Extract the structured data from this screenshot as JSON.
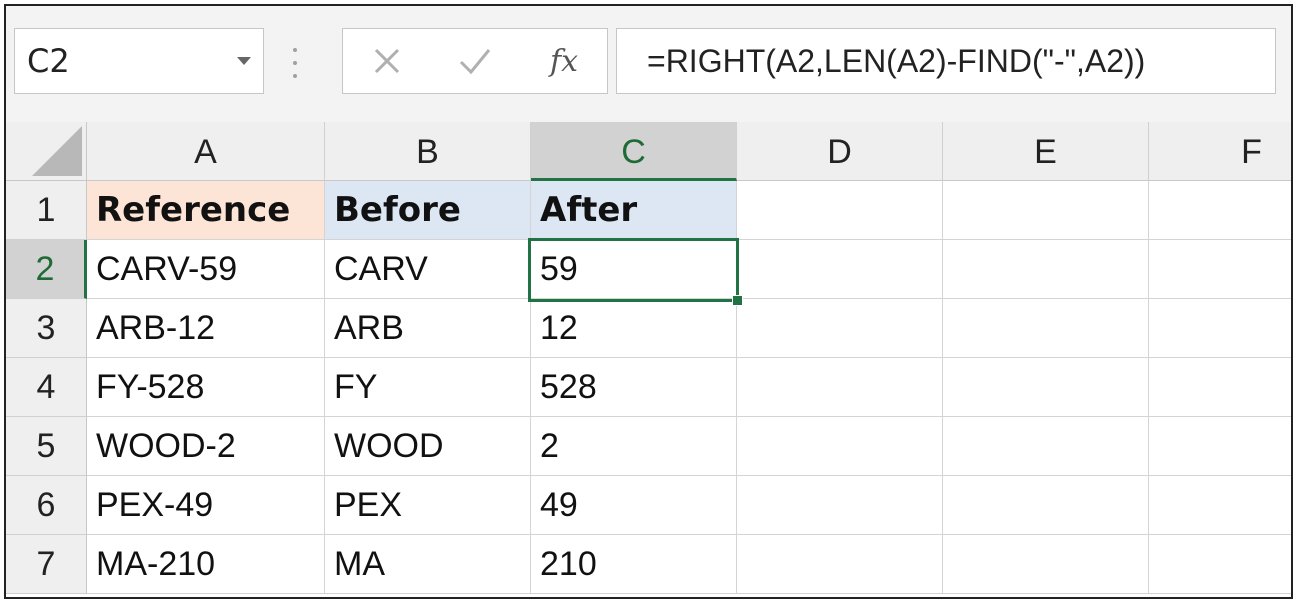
{
  "formula_bar": {
    "name_box": "C2",
    "fx_label": "fx",
    "formula": "=RIGHT(A2,LEN(A2)-FIND(\"-\",A2))"
  },
  "columns": [
    "A",
    "B",
    "C",
    "D",
    "E",
    "F"
  ],
  "rows": [
    "1",
    "2",
    "3",
    "4",
    "5",
    "6",
    "7"
  ],
  "cells": {
    "header": [
      "Reference",
      "Before",
      "After"
    ],
    "data": [
      [
        "CARV-59",
        "CARV",
        "59"
      ],
      [
        "ARB-12",
        "ARB",
        "12"
      ],
      [
        "FY-528",
        "FY",
        "528"
      ],
      [
        "WOOD-2",
        "WOOD",
        "2"
      ],
      [
        "PEX-49",
        "PEX",
        "49"
      ],
      [
        "MA-210",
        "MA",
        "210"
      ]
    ]
  },
  "active_cell": "C2",
  "colors": {
    "accent": "#217346",
    "reference_header_fill": "#fce4d6",
    "before_after_header_fill": "#dde7f3"
  }
}
